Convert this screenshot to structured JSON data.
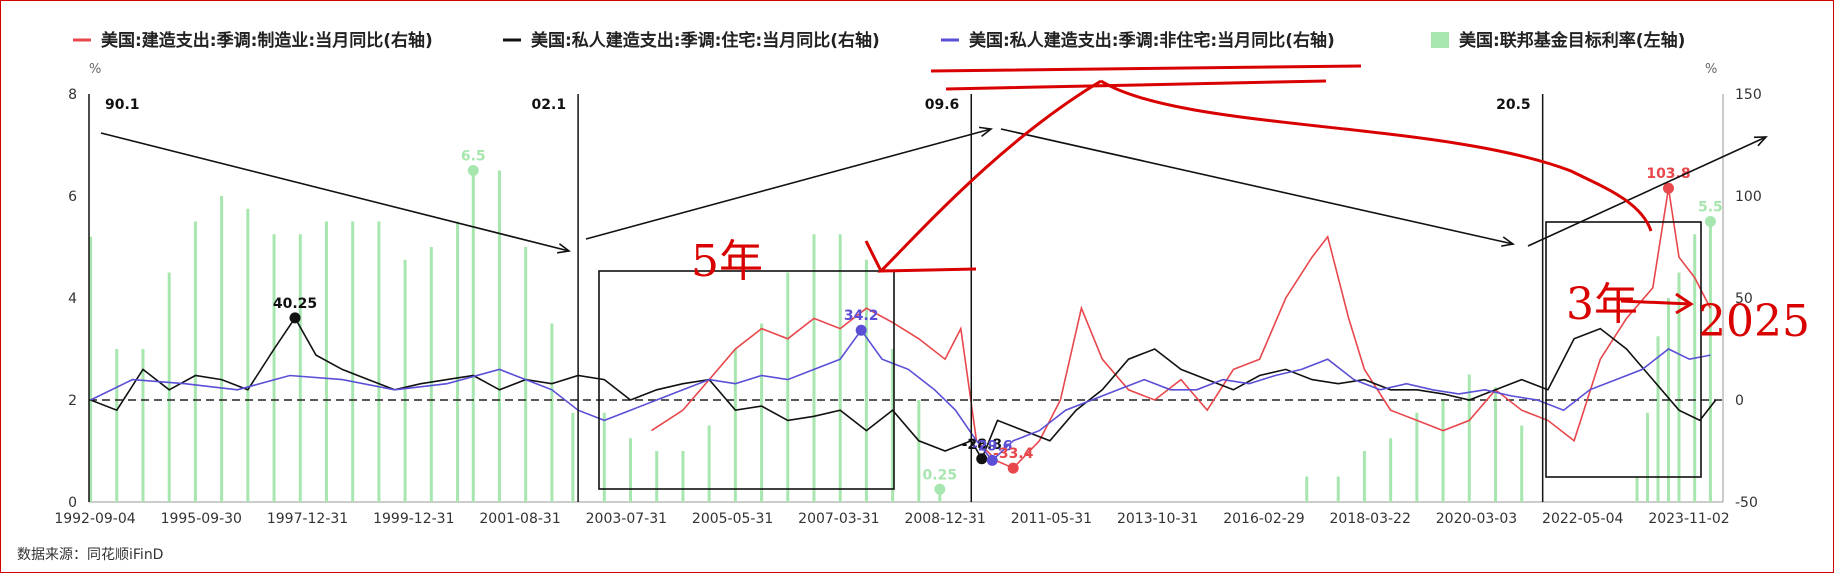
{
  "chart_data": {
    "type": "line",
    "legend": [
      {
        "name": "美国:建造支出:季调:制造业:当月同比(右轴)",
        "color": "#e8474c",
        "kind": "line"
      },
      {
        "name": "美国:私人建造支出:季调:住宅:当月同比(右轴)",
        "color": "#111111",
        "kind": "line"
      },
      {
        "name": "美国:私人建造支出:季调:非住宅:当月同比(右轴)",
        "color": "#5a4fd6",
        "kind": "line"
      },
      {
        "name": "美国:联邦基金目标利率(左轴)",
        "color": "#a8e6b0",
        "kind": "bar"
      }
    ],
    "left_axis": {
      "unit": "%",
      "ticks": [
        0,
        2,
        4,
        6,
        8
      ],
      "ylim": [
        0,
        8
      ]
    },
    "right_axis": {
      "unit": "%",
      "ticks": [
        -50,
        0,
        50,
        100,
        150
      ],
      "ylim": [
        -50,
        150
      ]
    },
    "x_ticks": [
      "1992-09-04",
      "1995-09-30",
      "1997-12-31",
      "1999-12-31",
      "2001-08-31",
      "2003-07-31",
      "2005-05-31",
      "2007-03-31",
      "2008-12-31",
      "2011-05-31",
      "2013-10-31",
      "2016-02-29",
      "2018-03-22",
      "2020-03-03",
      "2022-05-04",
      "2023-11-02"
    ],
    "x_range": [
      1992.67,
      2023.84
    ],
    "zero_line_right": 0,
    "vertical_markers": [
      {
        "label": "90.1",
        "x": 1992.67
      },
      {
        "label": "02.1",
        "x": 2002.0
      },
      {
        "label": "09.6",
        "x": 2009.5
      },
      {
        "label": "20.5",
        "x": 2020.4
      }
    ],
    "point_labels": [
      {
        "text": "40.25",
        "x": 1996.6,
        "y": 40.25,
        "color": "#111111"
      },
      {
        "text": "6.5",
        "x": 2000.0,
        "y_left": 6.5,
        "color": "#a8e6b0"
      },
      {
        "text": "34.2",
        "x": 2007.4,
        "y": 34.2,
        "color": "#5a4fd6"
      },
      {
        "text": "0.25",
        "x": 2008.9,
        "y_left": 0.25,
        "color": "#a8e6b0"
      },
      {
        "text": "-28.8",
        "x": 2009.7,
        "y": -28.8,
        "color": "#111111"
      },
      {
        "text": "-29.6",
        "x": 2009.9,
        "y": -29.6,
        "color": "#5a4fd6"
      },
      {
        "text": "-33.4",
        "x": 2010.3,
        "y": -33.4,
        "color": "#e8474c"
      },
      {
        "text": "103.8",
        "x": 2022.8,
        "y": 103.8,
        "color": "#e8474c"
      },
      {
        "text": "5.5",
        "x": 2023.6,
        "y_left": 5.5,
        "color": "#a8e6b0"
      }
    ],
    "series": [
      {
        "name": "美国:建造支出:季调:制造业:当月同比(右轴)",
        "color": "#e8474c",
        "x": [
          2003.4,
          2004.0,
          2004.5,
          2005.0,
          2005.5,
          2006.0,
          2006.5,
          2007.0,
          2007.5,
          2008.0,
          2008.5,
          2009.0,
          2009.3,
          2009.6,
          2010.0,
          2010.3,
          2010.8,
          2011.2,
          2011.6,
          2012.0,
          2012.5,
          2013.0,
          2013.5,
          2014.0,
          2014.5,
          2015.0,
          2015.5,
          2016.0,
          2016.3,
          2016.7,
          2017.0,
          2017.5,
          2018.0,
          2018.5,
          2019.0,
          2019.5,
          2020.0,
          2020.5,
          2021.0,
          2021.5,
          2022.0,
          2022.5,
          2022.8,
          2023.0,
          2023.3,
          2023.6
        ],
        "y": [
          -15,
          -5,
          10,
          25,
          35,
          30,
          40,
          35,
          45,
          38,
          30,
          20,
          35,
          -20,
          -30,
          -33.4,
          -20,
          0,
          45,
          20,
          5,
          0,
          10,
          -5,
          15,
          20,
          50,
          70,
          80,
          40,
          15,
          -5,
          -10,
          -15,
          -10,
          5,
          -5,
          -10,
          -20,
          20,
          40,
          55,
          103.8,
          70,
          60,
          45
        ]
      },
      {
        "name": "美国:私人建造支出:季调:住宅:当月同比(右轴)",
        "color": "#111111",
        "x": [
          1992.7,
          1993.2,
          1993.7,
          1994.2,
          1994.7,
          1995.2,
          1995.7,
          1996.2,
          1996.6,
          1997.0,
          1997.5,
          1998.0,
          1998.5,
          1999.0,
          1999.5,
          2000.0,
          2000.5,
          2001.0,
          2001.5,
          2002.0,
          2002.5,
          2003.0,
          2003.5,
          2004.0,
          2004.5,
          2005.0,
          2005.5,
          2006.0,
          2006.5,
          2007.0,
          2007.5,
          2008.0,
          2008.5,
          2009.0,
          2009.5,
          2009.7,
          2010.0,
          2010.5,
          2011.0,
          2011.5,
          2012.0,
          2012.5,
          2013.0,
          2013.5,
          2014.0,
          2014.5,
          2015.0,
          2015.5,
          2016.0,
          2016.5,
          2017.0,
          2017.5,
          2018.0,
          2018.5,
          2019.0,
          2019.5,
          2020.0,
          2020.5,
          2021.0,
          2021.5,
          2022.0,
          2022.5,
          2023.0,
          2023.4,
          2023.7
        ],
        "y": [
          0,
          -5,
          15,
          5,
          12,
          10,
          5,
          25,
          40.25,
          22,
          15,
          10,
          5,
          8,
          10,
          12,
          5,
          10,
          8,
          12,
          10,
          0,
          5,
          8,
          10,
          -5,
          -3,
          -10,
          -8,
          -5,
          -15,
          -5,
          -20,
          -25,
          -20,
          -28.8,
          -10,
          -15,
          -20,
          -5,
          5,
          20,
          25,
          15,
          10,
          5,
          12,
          15,
          10,
          8,
          10,
          5,
          5,
          3,
          0,
          5,
          10,
          5,
          30,
          35,
          25,
          10,
          -5,
          -10,
          0
        ]
      },
      {
        "name": "美国:私人建造支出:季调:非住宅:当月同比(右轴)",
        "color": "#5a4fd6",
        "x": [
          1992.7,
          1993.5,
          1994.5,
          1995.5,
          1996.5,
          1997.5,
          1998.5,
          1999.5,
          2000.5,
          2001.5,
          2002.0,
          2002.5,
          2003.0,
          2003.5,
          2004.0,
          2004.5,
          2005.0,
          2005.5,
          2006.0,
          2006.5,
          2007.0,
          2007.4,
          2007.8,
          2008.3,
          2008.8,
          2009.2,
          2009.6,
          2009.9,
          2010.3,
          2010.8,
          2011.3,
          2011.8,
          2012.3,
          2012.8,
          2013.3,
          2013.8,
          2014.3,
          2014.8,
          2015.3,
          2015.8,
          2016.3,
          2016.8,
          2017.3,
          2017.8,
          2018.3,
          2018.8,
          2019.3,
          2019.8,
          2020.3,
          2020.8,
          2021.3,
          2021.8,
          2022.3,
          2022.8,
          2023.2,
          2023.6
        ],
        "y": [
          0,
          10,
          8,
          5,
          12,
          10,
          5,
          8,
          15,
          5,
          -5,
          -10,
          -5,
          0,
          5,
          10,
          8,
          12,
          10,
          15,
          20,
          34.2,
          20,
          15,
          5,
          -5,
          -20,
          -29.6,
          -20,
          -15,
          -5,
          0,
          5,
          10,
          5,
          5,
          10,
          8,
          12,
          15,
          20,
          10,
          5,
          8,
          5,
          3,
          5,
          2,
          0,
          -5,
          5,
          10,
          15,
          25,
          20,
          22
        ]
      }
    ],
    "rate_bars": {
      "name": "美国:联邦基金目标利率(左轴)",
      "x": [
        1992.7,
        1993.2,
        1993.7,
        1994.2,
        1994.7,
        1995.2,
        1995.7,
        1996.2,
        1996.7,
        1997.2,
        1997.7,
        1998.2,
        1998.7,
        1999.2,
        1999.7,
        2000.0,
        2000.5,
        2001.0,
        2001.5,
        2001.9,
        2002.5,
        2003.0,
        2003.5,
        2004.0,
        2004.5,
        2005.0,
        2005.5,
        2006.0,
        2006.5,
        2007.0,
        2007.5,
        2008.0,
        2008.5,
        2008.9,
        2015.9,
        2016.5,
        2017.0,
        2017.5,
        2018.0,
        2018.5,
        2019.0,
        2019.5,
        2020.0,
        2022.2,
        2022.4,
        2022.6,
        2022.8,
        2023.0,
        2023.3,
        2023.6
      ],
      "y": [
        5.2,
        3.0,
        3.0,
        4.5,
        5.5,
        6.0,
        5.75,
        5.25,
        5.25,
        5.5,
        5.5,
        5.5,
        4.75,
        5.0,
        5.5,
        6.5,
        6.5,
        5.0,
        3.5,
        1.75,
        1.75,
        1.25,
        1.0,
        1.0,
        1.5,
        3.0,
        3.5,
        4.5,
        5.25,
        5.25,
        4.75,
        3.0,
        2.0,
        0.25,
        0.5,
        0.5,
        1.0,
        1.25,
        1.75,
        2.0,
        2.5,
        2.25,
        1.5,
        0.5,
        1.75,
        3.25,
        4.0,
        4.5,
        5.25,
        5.5
      ]
    }
  },
  "footer": {
    "source": "数据来源：同花顺iFinD"
  },
  "annotations": {
    "handwritten_1": "5年",
    "handwritten_2": "3年",
    "handwritten_3": "2025"
  }
}
